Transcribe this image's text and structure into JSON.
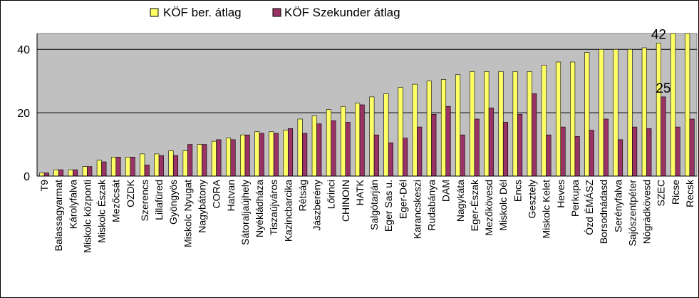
{
  "colors": {
    "series1": "#ffff66",
    "series2": "#993366",
    "plot_background": "#c0c0c0",
    "bar_stroke": "#000000",
    "gridline": "#000000"
  },
  "chart_data": {
    "type": "bar",
    "title": "",
    "xlabel": "",
    "ylabel": "",
    "ylim": [
      0,
      45
    ],
    "yticks": [
      0,
      20,
      40
    ],
    "grid": true,
    "legend_position": "top",
    "categories": [
      "T9",
      "Balassagyarmat",
      "Károlyfalva",
      "Miskolc központi",
      "Miskolc Észak",
      "Mezőcsát",
      "OZDK",
      "Szerencs",
      "Lillafüred",
      "Gyöngyös",
      "Miskolc Nyugat",
      "Nagybátony",
      "CORA",
      "Hatvan",
      "Sátoraljaújhely",
      "Nyékládháza",
      "Tiszaújváros",
      "Kazincbarcika",
      "Rétság",
      "Jászberény",
      "Lőrinci",
      "CHINOIN",
      "HATK",
      "Salgótarján",
      "Eger Sas u.",
      "Eger-Dél",
      "Karancskeszi",
      "Rudabánya",
      "DAM",
      "Nagykáta",
      "Eger-Észak",
      "Mezőkövesd",
      "Miskolc Dél",
      "Encs",
      "Gesztely",
      "Miskolc Kelet",
      "Heves",
      "Perkupa",
      "Ózd ÉMÁSZ",
      "Borsodnádasd",
      "Serényfalva",
      "Sajószentpéter",
      "Nógrádkövesd",
      "SZEC",
      "Ricse",
      "Recsk"
    ],
    "series": [
      {
        "name": "KÖF ber. átlag",
        "values": [
          1,
          2,
          2,
          3,
          5,
          6,
          6,
          7,
          7,
          8,
          8,
          10,
          11,
          12,
          13,
          14,
          14,
          14.5,
          18,
          19,
          21,
          22,
          23,
          25,
          26,
          28,
          29,
          30,
          30.5,
          32,
          33,
          33,
          33,
          33,
          33,
          35,
          36,
          36,
          39,
          40,
          40,
          40,
          40.5,
          42,
          45,
          45
        ]
      },
      {
        "name": "KÖF Szekunder átlag",
        "values": [
          1,
          2,
          2,
          3,
          4.5,
          6,
          6,
          3.5,
          6.5,
          6.5,
          10,
          10,
          11.5,
          11.5,
          13,
          13.5,
          13.5,
          15,
          13.5,
          16.5,
          17.5,
          17,
          22.5,
          13,
          10.5,
          12,
          15.5,
          19.5,
          22,
          13,
          18,
          21.5,
          17,
          19.5,
          26,
          13,
          15.5,
          12.5,
          14.5,
          18,
          11.5,
          15.5,
          15,
          25,
          15.5,
          18
        ]
      }
    ],
    "data_labels": [
      {
        "series": 0,
        "index": 43,
        "text": "42"
      },
      {
        "series": 1,
        "index": 43,
        "text": "25"
      }
    ]
  }
}
